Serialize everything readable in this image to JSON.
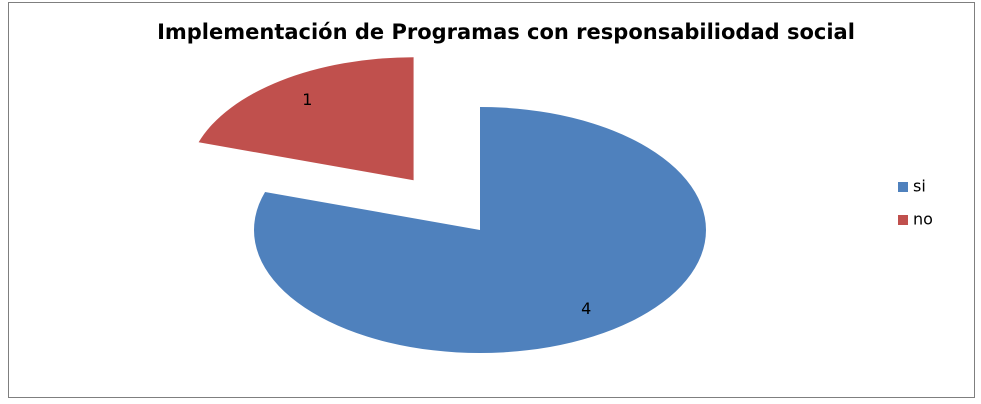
{
  "chart_data": {
    "type": "pie",
    "title": "Implementación de Programas con responsabiliodad social",
    "categories": [
      "si",
      "no"
    ],
    "values": [
      4,
      1
    ],
    "colors": [
      "#4f81bd",
      "#c0504d"
    ],
    "explode": [
      0,
      0.5
    ],
    "legend": "right",
    "data_labels": true
  }
}
